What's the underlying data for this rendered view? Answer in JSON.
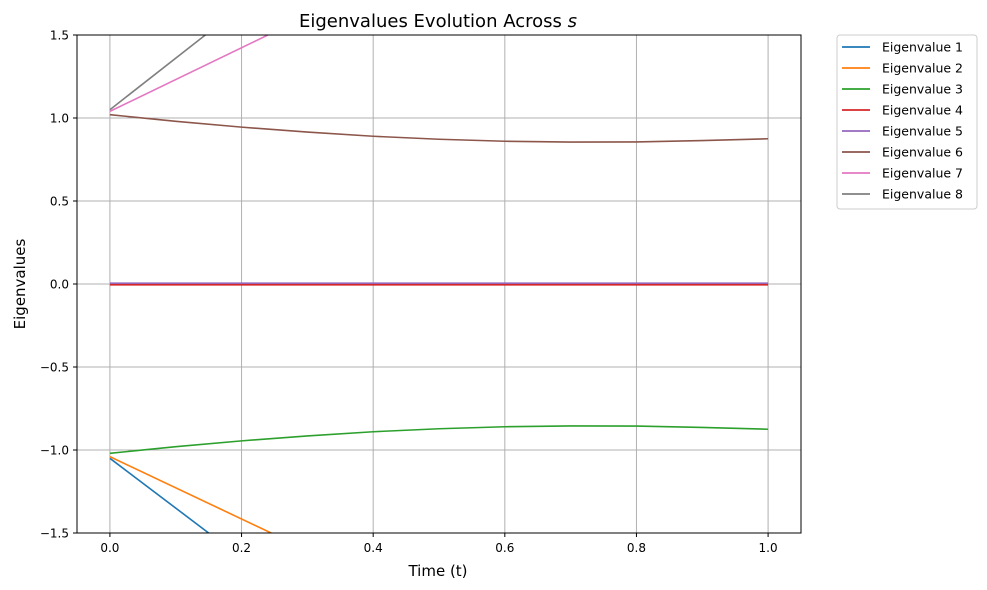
{
  "chart_data": {
    "type": "line",
    "title": "Eigenvalues Evolution Across s",
    "title_prefix": "Eigenvalues Evolution Across ",
    "title_var": "s",
    "xlabel": "Time (t)",
    "ylabel": "Eigenvalues",
    "xlim": [
      -0.05,
      1.05
    ],
    "ylim": [
      -1.5,
      1.5
    ],
    "xticks": [
      0.0,
      0.2,
      0.4,
      0.6,
      0.8,
      1.0
    ],
    "xtick_labels": [
      "0.0",
      "0.2",
      "0.4",
      "0.6",
      "0.8",
      "1.0"
    ],
    "yticks": [
      -1.5,
      -1.0,
      -0.5,
      0.0,
      0.5,
      1.0,
      1.5
    ],
    "ytick_labels": [
      "−1.5",
      "−1.0",
      "−0.5",
      "0.0",
      "0.5",
      "1.0",
      "1.5"
    ],
    "grid": true,
    "legend_position": "outside-right",
    "series": [
      {
        "name": "Eigenvalue 1",
        "color": "#1f77b4",
        "x": [
          0.0,
          0.15
        ],
        "y": [
          -1.05,
          -1.5
        ]
      },
      {
        "name": "Eigenvalue 2",
        "color": "#ff7f0e",
        "x": [
          0.0,
          0.245
        ],
        "y": [
          -1.04,
          -1.5
        ]
      },
      {
        "name": "Eigenvalue 3",
        "color": "#2ca02c",
        "x": [
          0.0,
          0.1,
          0.2,
          0.3,
          0.4,
          0.5,
          0.6,
          0.7,
          0.8,
          0.9,
          1.0
        ],
        "y": [
          -1.02,
          -0.98,
          -0.945,
          -0.915,
          -0.89,
          -0.872,
          -0.86,
          -0.855,
          -0.856,
          -0.864,
          -0.875
        ]
      },
      {
        "name": "Eigenvalue 4",
        "color": "#d62728",
        "x": [
          0.0,
          1.0
        ],
        "y": [
          -0.005,
          -0.005
        ]
      },
      {
        "name": "Eigenvalue 5",
        "color": "#9467bd",
        "x": [
          0.0,
          1.0
        ],
        "y": [
          0.005,
          0.005
        ]
      },
      {
        "name": "Eigenvalue 6",
        "color": "#8c564b",
        "x": [
          0.0,
          0.1,
          0.2,
          0.3,
          0.4,
          0.5,
          0.6,
          0.7,
          0.8,
          0.9,
          1.0
        ],
        "y": [
          1.02,
          0.98,
          0.945,
          0.915,
          0.89,
          0.872,
          0.86,
          0.855,
          0.856,
          0.864,
          0.875
        ]
      },
      {
        "name": "Eigenvalue 7",
        "color": "#e377c2",
        "x": [
          0.0,
          0.24
        ],
        "y": [
          1.04,
          1.5
        ]
      },
      {
        "name": "Eigenvalue 8",
        "color": "#7f7f7f",
        "x": [
          0.0,
          0.145
        ],
        "y": [
          1.05,
          1.5
        ]
      }
    ]
  }
}
